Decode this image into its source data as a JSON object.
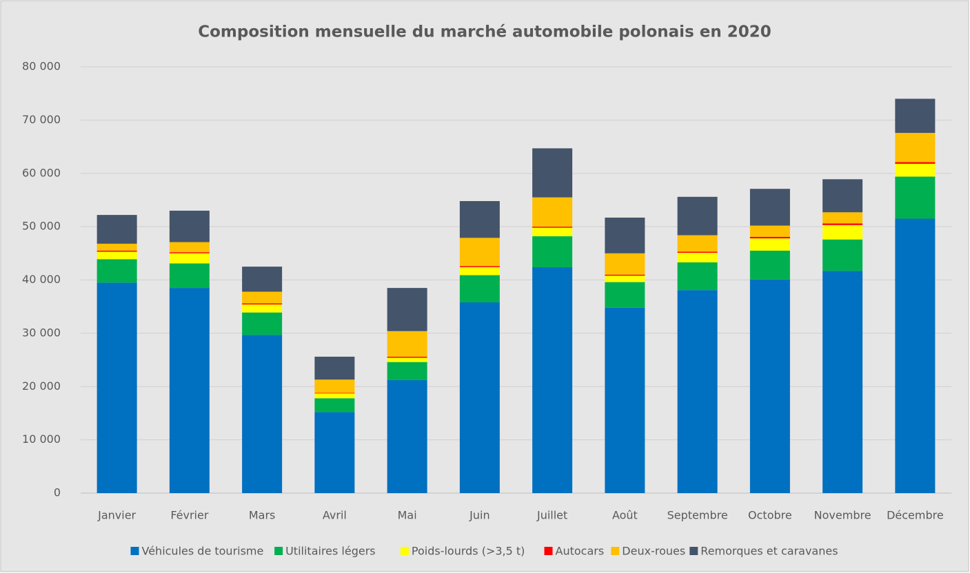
{
  "chart_data": {
    "type": "stacked_bar",
    "title": "Composition mensuelle du marché automobile polonais en 2020",
    "categories": [
      "Janvier",
      "Février",
      "Mars",
      "Avril",
      "Mai",
      "Juin",
      "Juillet",
      "Août",
      "Septembre",
      "Octobre",
      "Novembre",
      "Décembre"
    ],
    "series": [
      {
        "name": "Véhicules de tourisme",
        "color": "#0070c0",
        "values": [
          39500,
          38500,
          29700,
          15200,
          21200,
          35800,
          42400,
          34800,
          38100,
          40100,
          41700,
          51500
        ]
      },
      {
        "name": "Utilitaires légers",
        "color": "#00b050",
        "values": [
          4400,
          4600,
          4200,
          2600,
          3400,
          5100,
          5800,
          4800,
          5200,
          5400,
          5900,
          7900
        ]
      },
      {
        "name": "Poids-lourds (>3,5 t)",
        "color": "#ffff00",
        "values": [
          1400,
          1900,
          1500,
          900,
          800,
          1500,
          1600,
          1200,
          1800,
          2300,
          2700,
          2400
        ]
      },
      {
        "name": "Autocars",
        "color": "#ff0000",
        "values": [
          200,
          200,
          200,
          100,
          200,
          200,
          200,
          200,
          200,
          300,
          300,
          300
        ]
      },
      {
        "name": "Deux-roues",
        "color": "#ffc000",
        "values": [
          1300,
          1900,
          2200,
          2500,
          4800,
          5300,
          5500,
          4000,
          3100,
          2100,
          2100,
          5500
        ]
      },
      {
        "name": "Remorques et caravanes",
        "color": "#44546a",
        "values": [
          5400,
          5900,
          4700,
          4300,
          8100,
          6900,
          9200,
          6700,
          7200,
          6900,
          6200,
          6400
        ]
      }
    ],
    "ylim": [
      0,
      80000
    ],
    "yticks": [
      0,
      {
        "value": 10000,
        "label": "10 000"
      },
      {
        "value": 20000,
        "label": "20 000"
      },
      {
        "value": 30000,
        "label": "30 000"
      },
      {
        "value": 40000,
        "label": "40 000"
      },
      {
        "value": 50000,
        "label": "50 000"
      },
      {
        "value": 60000,
        "label": "60 000"
      },
      {
        "value": 70000,
        "label": "70 000"
      },
      {
        "value": 80000,
        "label": "80 000"
      }
    ],
    "grid": true,
    "legend": "bottom"
  }
}
